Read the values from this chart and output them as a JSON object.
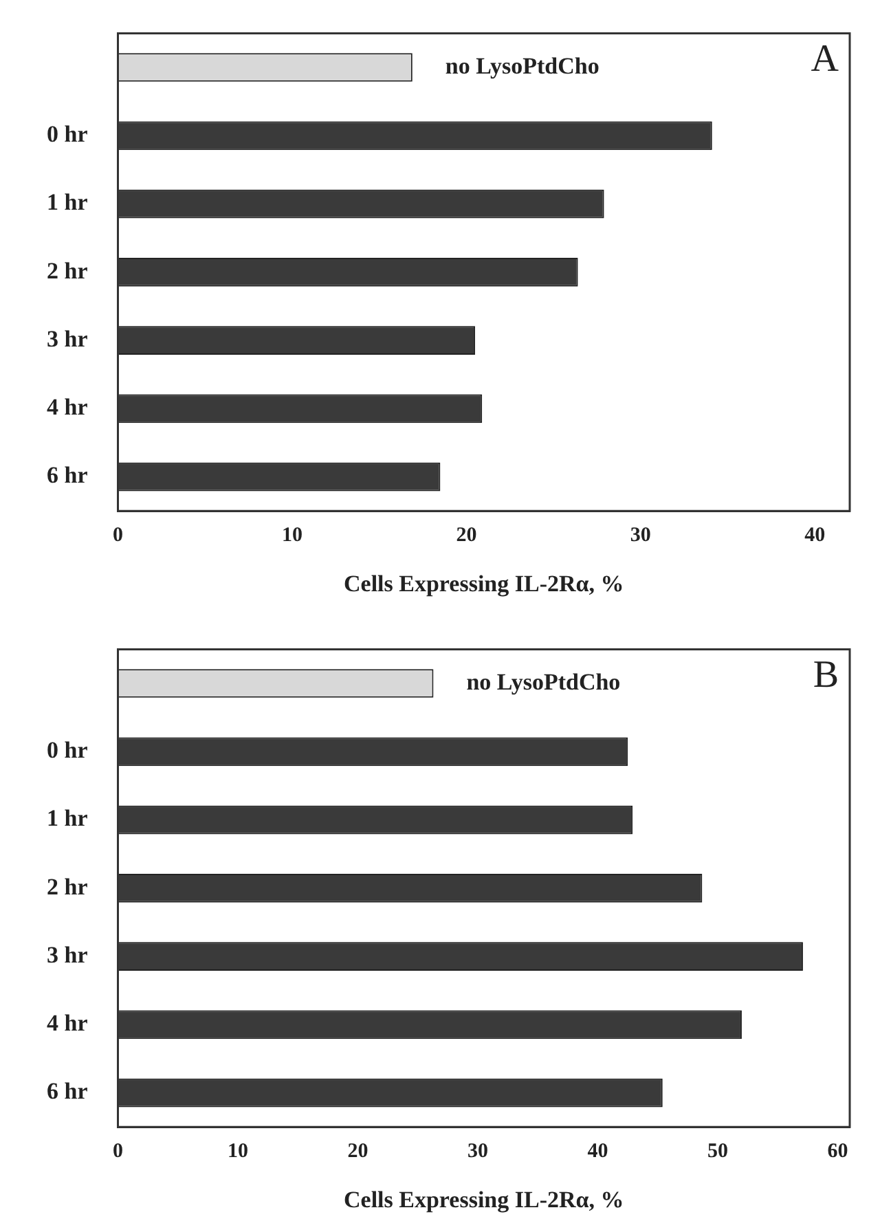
{
  "chart_data": [
    {
      "type": "bar",
      "orientation": "horizontal",
      "title": "A",
      "xlabel": "Cells Expressing IL-2Rα, %",
      "categories": [
        null,
        "0 hr",
        "1 hr",
        "2 hr",
        "3 hr",
        "4 hr",
        "6 hr"
      ],
      "values": [
        16.9,
        34.1,
        27.9,
        26.4,
        20.5,
        20.9,
        18.5
      ],
      "colors": [
        "#d8d8d8",
        "#3a3a3a",
        "#3a3a3a",
        "#3a3a3a",
        "#3a3a3a",
        "#3a3a3a",
        "#3a3a3a"
      ],
      "annotations": [
        "no LysoPtdCho"
      ],
      "xlim": [
        0,
        42
      ],
      "xticks": [
        0,
        10,
        20,
        30,
        40
      ],
      "grid": false
    },
    {
      "type": "bar",
      "orientation": "horizontal",
      "title": "B",
      "xlabel": "Cells Expressing IL-2Rα, %",
      "categories": [
        null,
        "0 hr",
        "1 hr",
        "2 hr",
        "3 hr",
        "4 hr",
        "6 hr"
      ],
      "values": [
        26.3,
        42.5,
        42.9,
        48.7,
        57.1,
        52.0,
        45.4
      ],
      "colors": [
        "#d8d8d8",
        "#3a3a3a",
        "#3a3a3a",
        "#3a3a3a",
        "#3a3a3a",
        "#3a3a3a",
        "#3a3a3a"
      ],
      "annotations": [
        "no LysoPtdCho"
      ],
      "xlim": [
        0,
        61
      ],
      "xticks": [
        0,
        10,
        20,
        30,
        40,
        50,
        60
      ],
      "grid": false
    }
  ]
}
